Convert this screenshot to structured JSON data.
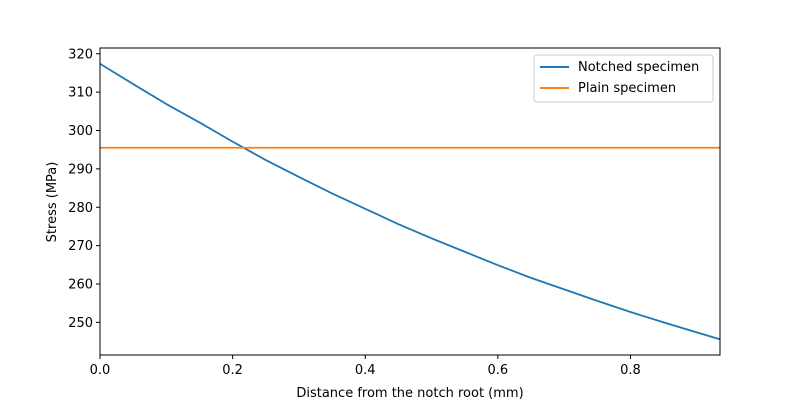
{
  "chart_data": {
    "type": "line",
    "xlabel": "Distance from the notch root (mm)",
    "ylabel": "Stress (MPa)",
    "xlim": [
      0.0,
      0.935
    ],
    "ylim": [
      241.5,
      321.5
    ],
    "x_ticks": [
      0.0,
      0.2,
      0.4,
      0.6,
      0.8
    ],
    "x_tick_labels": [
      "0.0",
      "0.2",
      "0.4",
      "0.6",
      "0.8"
    ],
    "y_ticks": [
      250,
      260,
      270,
      280,
      290,
      300,
      310,
      320
    ],
    "y_tick_labels": [
      "250",
      "260",
      "270",
      "280",
      "290",
      "300",
      "310",
      "320"
    ],
    "grid": false,
    "legend_position": "upper right",
    "series": [
      {
        "name": "Notched specimen",
        "color": "#1f77b4",
        "x": [
          0.0,
          0.05,
          0.1,
          0.15,
          0.2,
          0.25,
          0.3,
          0.35,
          0.4,
          0.45,
          0.5,
          0.55,
          0.6,
          0.65,
          0.7,
          0.75,
          0.8,
          0.85,
          0.9,
          0.935
        ],
        "y": [
          317.4,
          312.1,
          306.9,
          302.1,
          297.1,
          292.3,
          287.9,
          283.6,
          279.6,
          275.6,
          271.9,
          268.4,
          264.9,
          261.6,
          258.6,
          255.6,
          252.7,
          250.0,
          247.4,
          245.6
        ]
      },
      {
        "name": "Plain specimen",
        "color": "#ff7f0e",
        "x": [
          0.0,
          0.935
        ],
        "y": [
          295.5,
          295.5
        ]
      }
    ]
  }
}
